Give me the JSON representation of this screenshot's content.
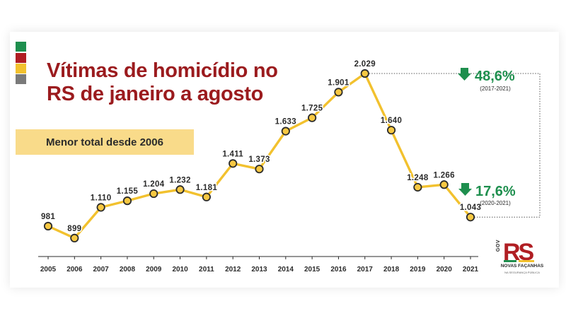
{
  "colors": {
    "title": "#9b1b1e",
    "line": "#f2c12e",
    "marker_fill": "#f7c842",
    "marker_stroke": "#2b2b2b",
    "highlight_box": "#f9db8a",
    "decrease": "#1e8f4e",
    "flag": [
      "#1e8f4e",
      "#b01e23",
      "#f2c12e",
      "#7a7a7a"
    ]
  },
  "header": {
    "title_line1": "Vítimas de homicídio no",
    "title_line2": "RS de janeiro a agosto",
    "subtitle": "Menor total desde 2006"
  },
  "callouts": [
    {
      "icon": "down-arrow-icon",
      "value": "48,6%",
      "period": "(2017-2021)"
    },
    {
      "icon": "down-arrow-icon",
      "value": "17,6%",
      "period": "(2020-2021)"
    }
  ],
  "logo": {
    "side_text": "GOV",
    "mark": "RS",
    "name": "NOVAS FAÇANHAS",
    "tagline": "NA SEGURANÇA PÚBLICA"
  },
  "chart_data": {
    "type": "line",
    "title": "Vítimas de homicídio no RS de janeiro a agosto",
    "subtitle": "Menor total desde 2006",
    "categories": [
      "2005",
      "2006",
      "2007",
      "2008",
      "2009",
      "2010",
      "2011",
      "2012",
      "2013",
      "2014",
      "2015",
      "2016",
      "2017",
      "2018",
      "2019",
      "2020",
      "2021"
    ],
    "values": [
      981,
      899,
      1110,
      1155,
      1204,
      1232,
      1181,
      1411,
      1373,
      1633,
      1725,
      1901,
      2029,
      1640,
      1248,
      1266,
      1043
    ],
    "value_labels": [
      "981",
      "899",
      "1.110",
      "1.155",
      "1.204",
      "1.232",
      "1.181",
      "1.411",
      "1.373",
      "1.633",
      "1.725",
      "1.901",
      "2.029",
      "1.640",
      "1.248",
      "1.266",
      "1.043"
    ],
    "ylim": [
      850,
      2029
    ],
    "grid": false,
    "legend": "none"
  }
}
